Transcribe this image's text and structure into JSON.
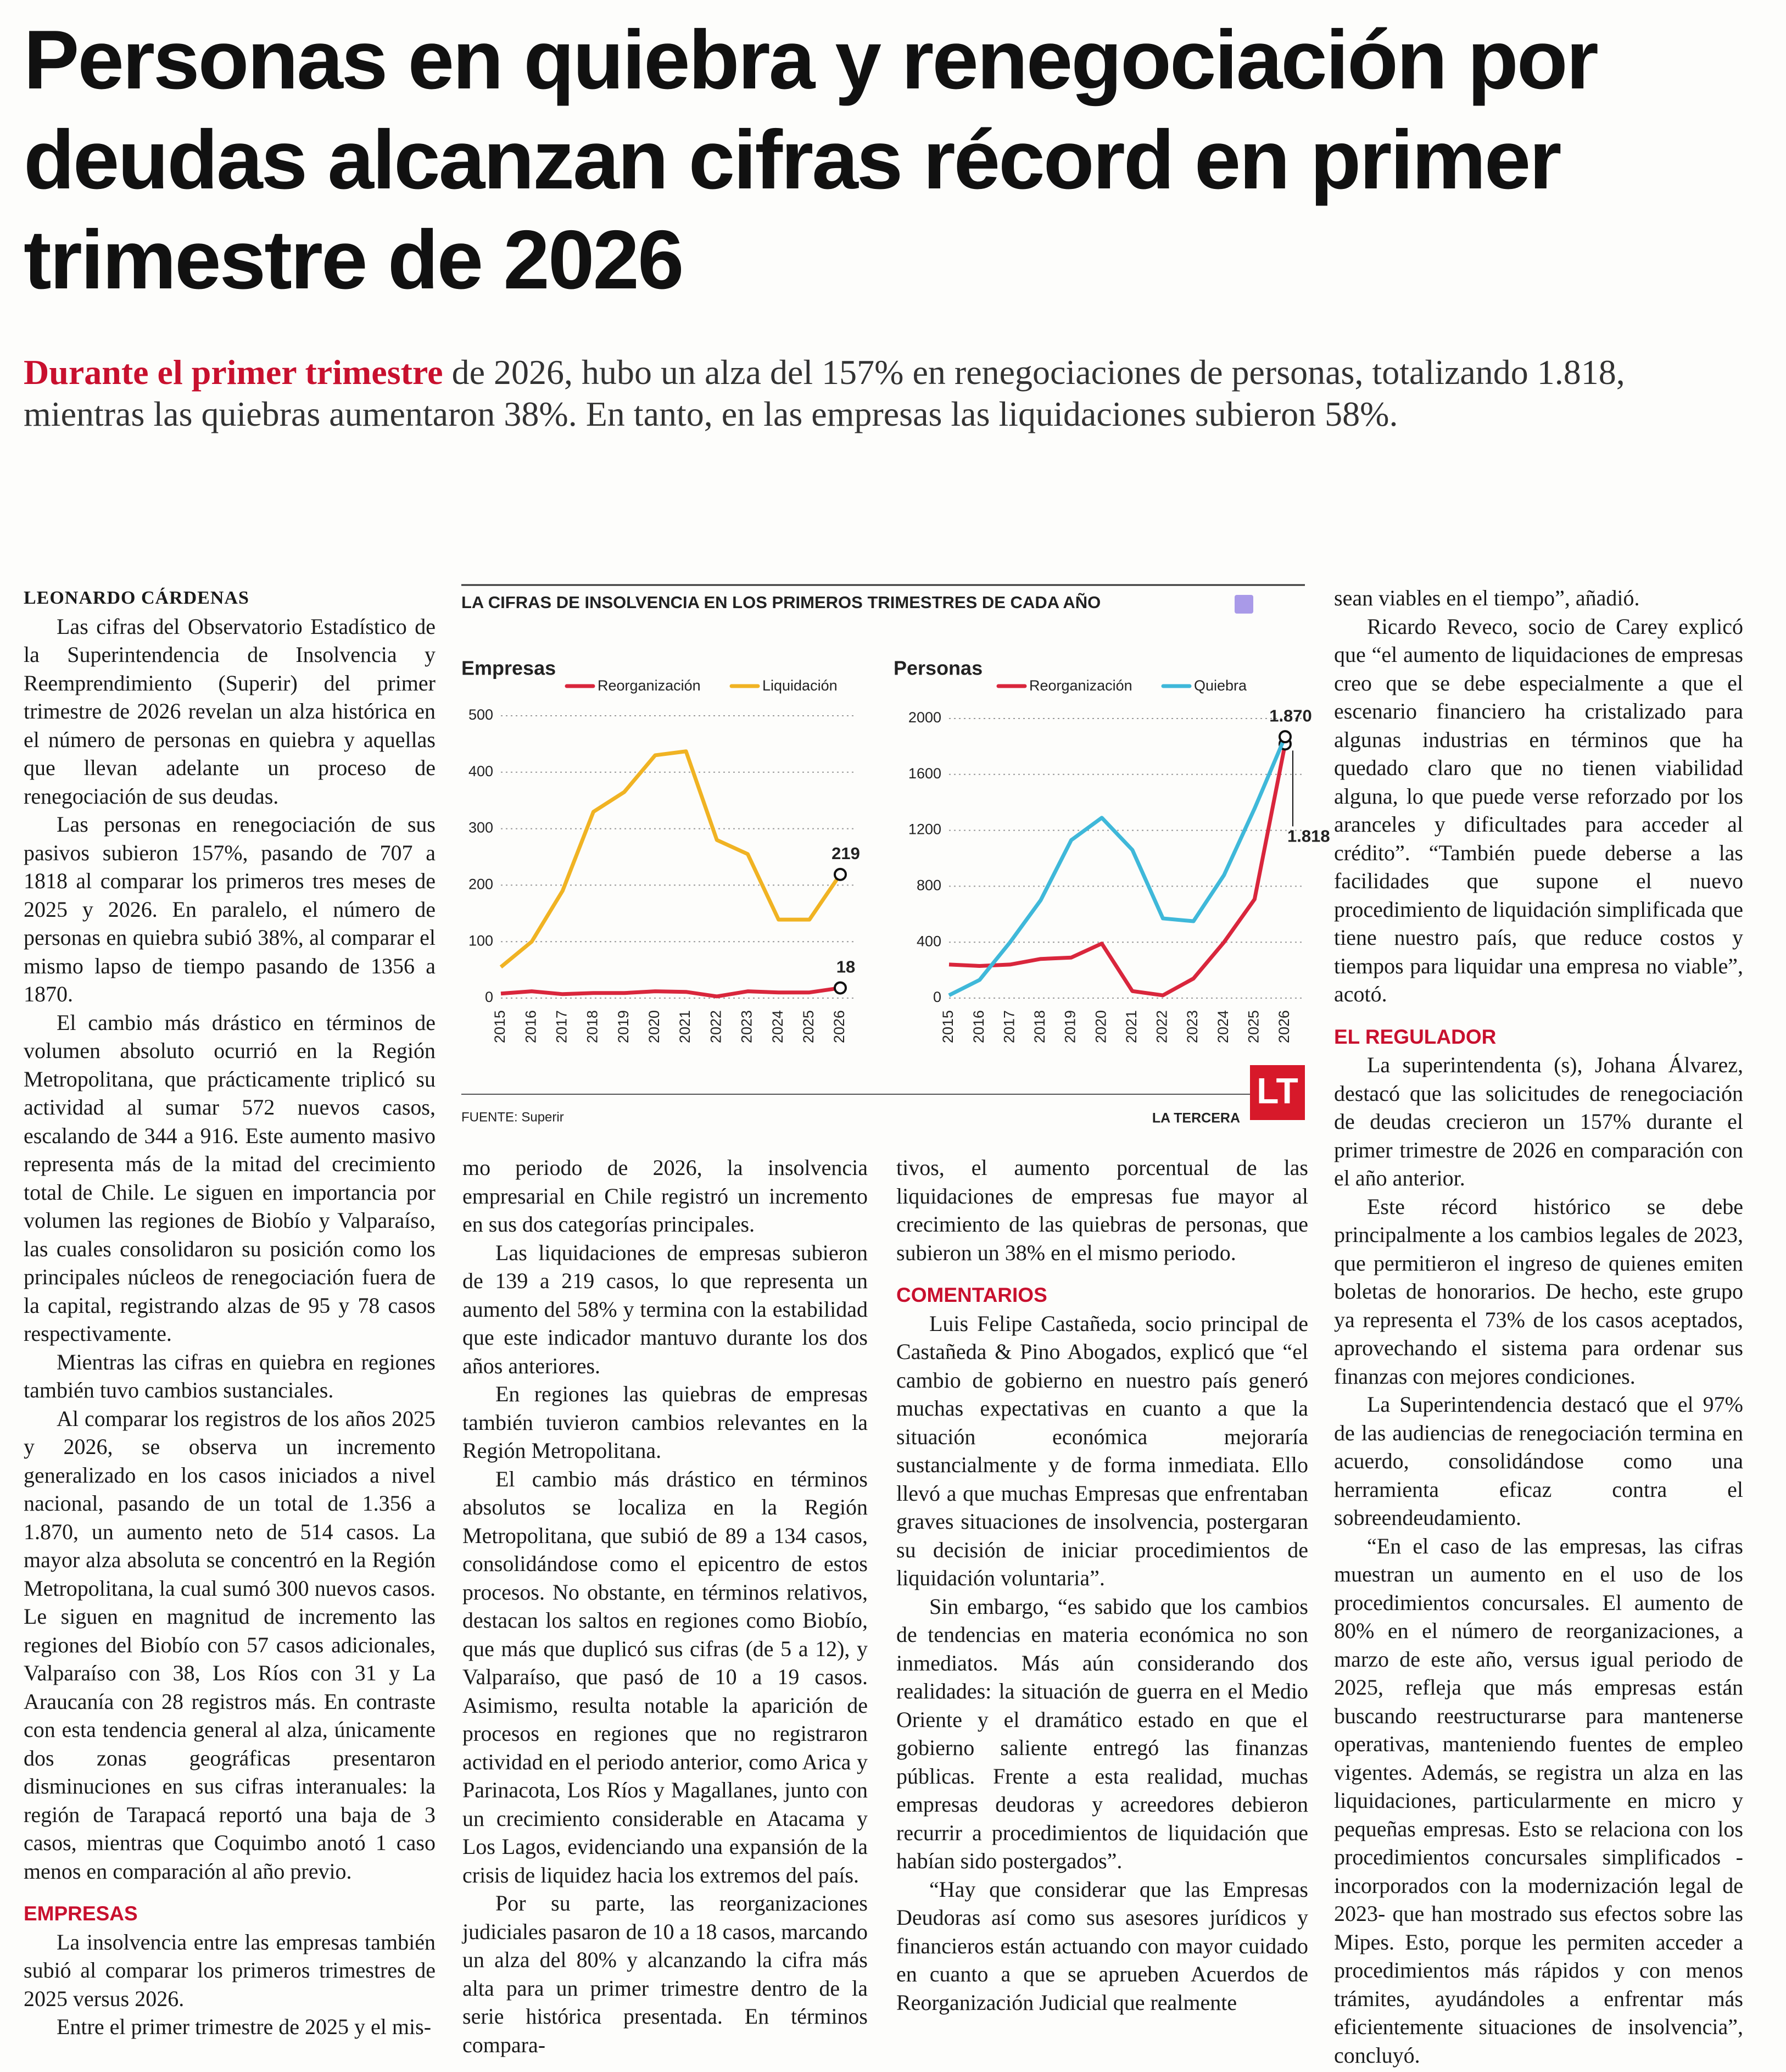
{
  "headline": "Personas en quiebra y renegociación por deudas alcanzan cifras récord en primer trimestre de 2026",
  "lead": {
    "highlight": "Durante el primer trimestre",
    "text": " de 2026, hubo un alza del 157% en renegociaciones de personas, totalizando 1.818, mientras las quiebras aumentaron 38%. En tanto, en las empresas las liquidaciones subieron 58%."
  },
  "columns": [
    [
      {
        "byline": "LEONARDO CÁRDENAS"
      },
      {
        "p": "Las cifras del Observatorio Estadístico de la Superintendencia de Insolvencia y Reemprendimiento (Superir) del primer trimestre de 2026 revelan un alza histórica en el número de personas en quiebra y aquellas que llevan adelante un proceso de renegociación de sus deudas."
      },
      {
        "p": "Las personas en renegociación de sus pasivos subieron 157%, pasando de 707 a 1818 al comparar los primeros tres meses de 2025 y 2026. En paralelo, el número de personas en quiebra subió 38%, al comparar el mismo lapso de tiempo pasando de 1356 a 1870."
      },
      {
        "p": "El cambio más drástico en términos de volumen absoluto ocurrió en la Región Metropolitana, que prácticamente triplicó su actividad al sumar 572 nuevos casos, escalando de 344 a 916. Este aumento masivo representa más de la mitad del crecimiento total de Chile. Le siguen en importancia por volumen las regiones de Biobío y Valparaíso, las cuales consolidaron su posición como los principales núcleos de renegociación fuera de la capital, registrando alzas de 95 y 78 casos respectivamente."
      },
      {
        "p": "Mientras las cifras en quiebra en regiones también tuvo cambios sustanciales."
      },
      {
        "p": "Al comparar los registros de los años 2025 y 2026, se observa un incremento generalizado en los casos iniciados a nivel nacional, pasando de un total de 1.356 a 1.870, un aumento neto de 514 casos. La mayor alza absoluta se concentró en la Región Metropolitana, la cual sumó 300 nuevos casos. Le siguen en magnitud de incremento las regiones del Biobío con 57 casos adicionales, Valparaíso con 38, Los Ríos con 31 y La Araucanía con 28 registros más. En contraste con esta tendencia general al alza, únicamente dos zonas geográficas presentaron disminuciones en sus cifras interanuales: la región de Tarapacá reportó una baja de 3 casos, mientras que Coquimbo anotó 1 caso menos en comparación al año previo."
      },
      {
        "heading": "EMPRESAS"
      },
      {
        "p": "La insolvencia entre las empresas también subió al comparar los primeros trimestres de 2025 versus 2026."
      },
      {
        "p": "Entre el primer trimestre de 2025 y el mis-"
      }
    ],
    [
      {
        "continued": "mo periodo de 2026, la insolvencia empresarial en Chile registró un incremento en sus dos categorías principales."
      },
      {
        "p": "Las liquidaciones de empresas subieron de 139 a 219 casos, lo que representa un aumento del 58% y termina con la estabilidad que este indicador mantuvo durante los dos años anteriores."
      },
      {
        "p": "En regiones las quiebras de empresas también tuvieron cambios relevantes en la Región Metropolitana."
      },
      {
        "p": "El cambio más drástico en términos absolutos se localiza en la Región Metropolitana, que subió de 89 a 134 casos, consolidándose como el epicentro de estos procesos. No obstante, en términos relativos, destacan los saltos en regiones como Biobío, que más que duplicó sus cifras (de 5 a 12), y Valparaíso, que pasó de 10 a 19 casos. Asimismo, resulta notable la aparición de procesos en regiones que no registraron actividad en el periodo anterior, como Arica y Parinacota, Los Ríos y Magallanes, junto con un crecimiento considerable en Atacama y Los Lagos, evidenciando una expansión de la crisis de liquidez hacia los extremos del país."
      },
      {
        "p": "Por su parte, las reorganizaciones judiciales pasaron de 10 a 18 casos, marcando un alza del 80% y alcanzando la cifra más alta para un primer trimestre dentro de la serie histórica presentada. En términos compara-"
      }
    ],
    [
      {
        "continued": "tivos, el aumento porcentual de las liquidaciones de empresas fue mayor al crecimiento de las quiebras de personas, que subieron un 38% en el mismo periodo."
      },
      {
        "heading": "COMENTARIOS"
      },
      {
        "p": "Luis Felipe Castañeda, socio principal de Castañeda & Pino Abogados, explicó que “el cambio de gobierno en nuestro país generó muchas expectativas en cuanto a que la situación económica mejoraría sustancialmente y de forma inmediata. Ello llevó a que muchas Empresas que enfrentaban graves situaciones de insolvencia, postergaran su decisión de iniciar procedimientos de liquidación voluntaria”."
      },
      {
        "p": "Sin embargo, “es sabido que los cambios de tendencias en materia económica no son inmediatos. Más aún considerando dos realidades: la situación de guerra en el Medio Oriente y el dramático estado en que el gobierno saliente entregó las finanzas públicas. Frente a esta realidad, muchas empresas deudoras y acreedores debieron recurrir a procedimientos de liquidación que habían sido postergados”."
      },
      {
        "p": "“Hay que considerar que las Empresas Deudoras así como sus asesores jurídicos y financieros están actuando con mayor cuidado en cuanto a que se aprueben Acuerdos de Reorganización Judicial que realmente"
      }
    ],
    [
      {
        "continued": "sean viables en el tiempo”, añadió."
      },
      {
        "p": "Ricardo Reveco, socio de Carey explicó que “el aumento de liquidaciones de empresas creo que se debe especialmente a que el escenario financiero ha cristalizado para algunas industrias en términos que ha quedado claro que no tienen viabilidad alguna, lo que puede verse reforzado por los aranceles y dificultades para acceder al crédito”. “También puede deberse a las facilidades que supone el nuevo procedimiento de liquidación simplificada que tiene nuestro país, que reduce costos y tiempos para liquidar una empresa no viable”, acotó."
      },
      {
        "heading": "EL REGULADOR"
      },
      {
        "p": "La superintendenta (s), Johana Álvarez, destacó que las solicitudes de renegociación de deudas crecieron un 157% durante el primer trimestre de 2026 en comparación con el año anterior."
      },
      {
        "p": "Este récord histórico se debe principalmente a los cambios legales de 2023, que permitieron el ingreso de quienes emiten boletas de honorarios. De hecho, este grupo ya representa el 73% de los casos aceptados, aprovechando el sistema para ordenar sus finanzas con mejores condiciones."
      },
      {
        "p": "La Superintendencia destacó que el 97% de las audiencias de renegociación termina en acuerdo, consolidándose como una herramienta eficaz contra el sobreendeudamiento."
      },
      {
        "p": "“En el caso de las empresas, las cifras muestran un aumento en el uso de los procedimientos concursales. El aumento de 80% en el número de reorganizaciones, a marzo de este año, versus igual periodo de 2025, refleja que más empresas están buscando reestructurarse para mantenerse operativas, manteniendo fuentes de empleo vigentes. Además, se registra un alza en las liquidaciones, particularmente en micro y pequeñas empresas. Esto se relaciona con los procedimientos concursales simplificados -incorporados con la modernización legal de 2023- que han mostrado sus efectos sobre las Mipes. Esto, porque les permiten acceder a procedimientos más rápidos y con menos trámites, ayudándoles a enfrentar más eficientemente situaciones de insolvencia”, concluyó."
      }
    ]
  ],
  "chart_block": {
    "title": "LA CIFRAS DE INSOLVENCIA EN LOS PRIMEROS TRIMESTRES DE CADA AÑO",
    "source": "FUENTE: Superir",
    "brand": "LA TERCERA",
    "logo": "LT"
  },
  "chart_data": [
    {
      "type": "line",
      "title": "Empresas",
      "categories": [
        "2015",
        "2016",
        "2017",
        "2018",
        "2019",
        "2020",
        "2021",
        "2022",
        "2023",
        "2024",
        "2025",
        "2026"
      ],
      "series": [
        {
          "name": "Reorganización",
          "color": "#d9263c",
          "values": [
            8,
            12,
            7,
            9,
            9,
            12,
            11,
            3,
            12,
            10,
            10,
            18
          ]
        },
        {
          "name": "Liquidación",
          "color": "#f0b323",
          "values": [
            55,
            100,
            190,
            330,
            365,
            430,
            437,
            280,
            255,
            139,
            139,
            219
          ]
        }
      ],
      "ylim": [
        0,
        500
      ],
      "yticks": [
        0,
        100,
        200,
        300,
        400,
        500
      ],
      "grid": true,
      "data_labels": "last"
    },
    {
      "type": "line",
      "title": "Personas",
      "categories": [
        "2015",
        "2016",
        "2017",
        "2018",
        "2019",
        "2020",
        "2021",
        "2022",
        "2023",
        "2024",
        "2025",
        "2026"
      ],
      "series": [
        {
          "name": "Reorganización",
          "color": "#d9263c",
          "values": [
            240,
            230,
            240,
            280,
            290,
            390,
            50,
            20,
            140,
            400,
            707,
            1818
          ],
          "value_labels": [
            null,
            null,
            null,
            null,
            null,
            null,
            null,
            null,
            null,
            null,
            null,
            "1.818"
          ]
        },
        {
          "name": "Quiebra",
          "color": "#3fb8d9",
          "values": [
            20,
            130,
            400,
            700,
            1130,
            1290,
            1060,
            570,
            550,
            880,
            1356,
            1870
          ],
          "value_labels": [
            null,
            null,
            null,
            null,
            null,
            null,
            null,
            null,
            null,
            null,
            null,
            "1.870"
          ]
        }
      ],
      "ylim": [
        0,
        2000
      ],
      "yticks": [
        0,
        400,
        800,
        1200,
        1600,
        2000
      ],
      "grid": true,
      "data_labels": "last"
    }
  ]
}
